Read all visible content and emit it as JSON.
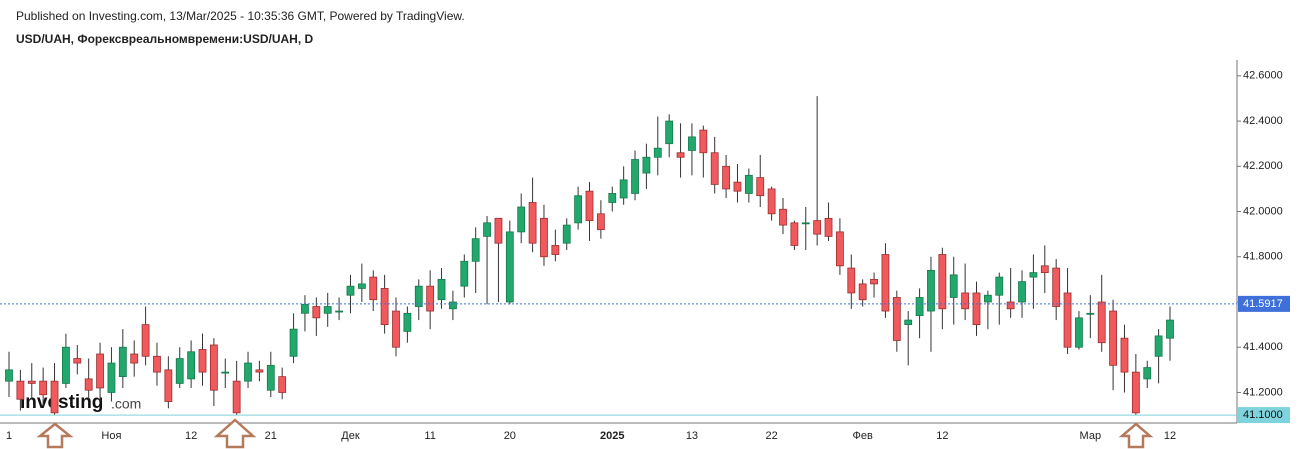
{
  "chart_data": {
    "type": "candlestick",
    "header": "Published on Investing.com, 13/Mar/2025 - 10:35:36 GMT, Powered by TradingView.",
    "title": "USD/UAH, Форексвреальномвремени:USD/UAH, D",
    "logo": "Investing",
    "logo_suffix": ".com",
    "up_color": "#22a86c",
    "down_color": "#f05a5c",
    "grid": false,
    "categories": [
      "1",
      null,
      null,
      null,
      null,
      null,
      null,
      null,
      null,
      "Ноя",
      null,
      null,
      null,
      null,
      null,
      null,
      "12",
      null,
      null,
      null,
      null,
      null,
      null,
      "21",
      null,
      null,
      null,
      null,
      null,
      null,
      "Дек",
      null,
      null,
      null,
      null,
      null,
      null,
      "11",
      null,
      null,
      null,
      null,
      null,
      null,
      "20",
      null,
      null,
      null,
      null,
      null,
      null,
      null,
      null,
      "2025",
      null,
      null,
      null,
      null,
      null,
      null,
      "13",
      null,
      null,
      null,
      null,
      null,
      null,
      "22",
      null,
      null,
      null,
      null,
      null,
      null,
      null,
      "Фев",
      null,
      null,
      null,
      null,
      null,
      null,
      "12",
      null,
      null,
      null,
      null,
      null,
      null,
      null,
      null,
      null,
      null,
      null,
      null,
      "Мар",
      null,
      null,
      null,
      null,
      null,
      null,
      "12"
    ],
    "open": [
      41.25,
      41.25,
      41.25,
      41.25,
      41.25,
      41.24,
      41.35,
      41.26,
      41.37,
      41.2,
      41.27,
      41.37,
      41.5,
      41.36,
      41.3,
      41.24,
      41.26,
      41.39,
      41.41,
      41.29,
      41.25,
      41.25,
      41.3,
      41.21,
      41.27,
      41.36,
      41.55,
      41.58,
      41.55,
      41.56,
      41.63,
      41.66,
      41.71,
      41.66,
      41.56,
      41.47,
      41.58,
      41.67,
      41.61,
      41.57,
      41.67,
      41.78,
      41.89,
      41.97,
      41.6,
      41.91,
      42.04,
      41.97,
      41.85,
      41.86,
      41.95,
      42.09,
      41.99,
      42.04,
      42.06,
      42.08,
      42.17,
      42.24,
      42.3,
      42.26,
      42.27,
      42.36,
      42.26,
      42.2,
      42.13,
      42.08,
      42.15,
      42.1,
      42.01,
      41.95,
      41.95,
      41.96,
      41.97,
      41.91,
      41.75,
      41.68,
      41.7,
      41.81,
      41.62,
      41.5,
      41.54,
      41.56,
      41.81,
      41.62,
      41.64,
      41.64,
      41.6,
      41.63,
      41.6,
      41.6,
      41.71,
      41.76,
      41.75,
      41.64,
      41.4,
      41.55,
      41.6,
      41.56,
      41.44,
      41.29,
      41.26,
      41.36,
      41.44
    ],
    "high": [
      41.38,
      41.3,
      41.33,
      41.31,
      41.33,
      41.46,
      41.41,
      41.35,
      41.42,
      41.4,
      41.48,
      41.43,
      41.58,
      41.42,
      41.36,
      41.4,
      41.43,
      41.46,
      41.44,
      41.35,
      41.34,
      41.38,
      41.34,
      41.38,
      41.31,
      41.55,
      41.63,
      41.62,
      41.64,
      41.62,
      41.72,
      41.77,
      41.74,
      41.72,
      41.62,
      41.58,
      41.7,
      41.74,
      41.75,
      41.65,
      41.81,
      41.93,
      41.98,
      41.97,
      41.96,
      42.08,
      42.15,
      42.03,
      41.92,
      41.97,
      42.11,
      42.13,
      42.05,
      42.11,
      42.2,
      42.27,
      42.3,
      42.42,
      42.43,
      42.39,
      42.39,
      42.38,
      42.33,
      42.25,
      42.21,
      42.19,
      42.25,
      42.11,
      42.06,
      41.96,
      42.02,
      42.51,
      42.04,
      41.97,
      41.81,
      41.7,
      41.73,
      41.86,
      41.65,
      41.56,
      41.66,
      41.8,
      41.84,
      41.8,
      41.77,
      41.69,
      41.65,
      41.73,
      41.75,
      41.74,
      41.81,
      41.85,
      41.79,
      41.75,
      41.56,
      41.63,
      41.72,
      41.61,
      41.5,
      41.37,
      41.34,
      41.48,
      41.58
    ],
    "low": [
      41.18,
      41.12,
      41.17,
      41.14,
      41.1,
      41.22,
      41.28,
      41.17,
      41.16,
      41.16,
      41.22,
      41.27,
      41.32,
      41.23,
      41.13,
      41.22,
      41.22,
      41.23,
      41.14,
      41.22,
      41.1,
      41.22,
      41.25,
      41.18,
      41.17,
      41.33,
      41.47,
      41.45,
      41.49,
      41.52,
      41.55,
      41.6,
      41.56,
      41.46,
      41.36,
      41.42,
      41.52,
      41.48,
      41.57,
      41.52,
      41.62,
      41.64,
      41.59,
      41.6,
      41.59,
      41.86,
      41.82,
      41.76,
      41.78,
      41.83,
      41.92,
      41.87,
      41.88,
      42.0,
      42.03,
      42.05,
      42.1,
      42.16,
      42.24,
      42.15,
      42.16,
      42.15,
      42.08,
      42.06,
      42.04,
      42.04,
      42.02,
      41.96,
      41.9,
      41.83,
      41.83,
      41.85,
      41.87,
      41.72,
      41.57,
      41.58,
      41.62,
      41.53,
      41.38,
      41.32,
      41.44,
      41.38,
      41.48,
      41.5,
      41.52,
      41.45,
      41.48,
      41.5,
      41.53,
      41.53,
      41.57,
      41.64,
      41.52,
      41.37,
      41.39,
      41.44,
      41.38,
      41.21,
      41.2,
      41.1,
      41.22,
      41.24,
      41.34
    ],
    "close": [
      41.3,
      41.17,
      41.24,
      41.19,
      41.11,
      41.4,
      41.33,
      41.21,
      41.22,
      41.33,
      41.4,
      41.33,
      41.36,
      41.29,
      41.16,
      41.35,
      41.38,
      41.29,
      41.21,
      41.29,
      41.11,
      41.33,
      41.29,
      41.32,
      41.2,
      41.48,
      41.59,
      41.53,
      41.58,
      41.56,
      41.67,
      41.68,
      41.61,
      41.5,
      41.4,
      41.55,
      41.67,
      41.56,
      41.7,
      41.6,
      41.78,
      41.88,
      41.95,
      41.86,
      41.91,
      42.02,
      41.86,
      41.8,
      41.81,
      41.94,
      42.07,
      41.96,
      41.92,
      42.08,
      42.14,
      42.23,
      42.24,
      42.28,
      42.4,
      42.24,
      42.33,
      42.26,
      42.12,
      42.1,
      42.09,
      42.16,
      42.07,
      41.99,
      41.94,
      41.85,
      41.95,
      41.9,
      41.89,
      41.76,
      41.64,
      41.61,
      41.68,
      41.56,
      41.43,
      41.52,
      41.62,
      41.74,
      41.57,
      41.72,
      41.57,
      41.5,
      41.63,
      41.71,
      41.57,
      41.69,
      41.73,
      41.73,
      41.58,
      41.4,
      41.53,
      41.55,
      41.42,
      41.32,
      41.29,
      41.11,
      41.31,
      41.45,
      41.52
    ],
    "ylim": [
      41.065,
      42.67
    ],
    "yticks": [
      {
        "value": 41.2,
        "label": "41.2000"
      },
      {
        "value": 41.4,
        "label": "41.4000"
      },
      {
        "value": 41.6,
        "label": "41.6000"
      },
      {
        "value": 41.8,
        "label": "41.8000"
      },
      {
        "value": 42.0,
        "label": "42.0000"
      },
      {
        "value": 42.2,
        "label": "42.2000"
      },
      {
        "value": 42.4,
        "label": "42.4000"
      },
      {
        "value": 42.6,
        "label": "42.6000"
      }
    ],
    "price_lines": [
      {
        "value": 41.5917,
        "color": "#3f6fd8",
        "text_color": "#ffffff",
        "style": "dotted"
      },
      {
        "value": 41.1,
        "label": "41.1000",
        "color": "#7fd3dc",
        "text_color": "#111111",
        "style": "solid"
      }
    ]
  }
}
